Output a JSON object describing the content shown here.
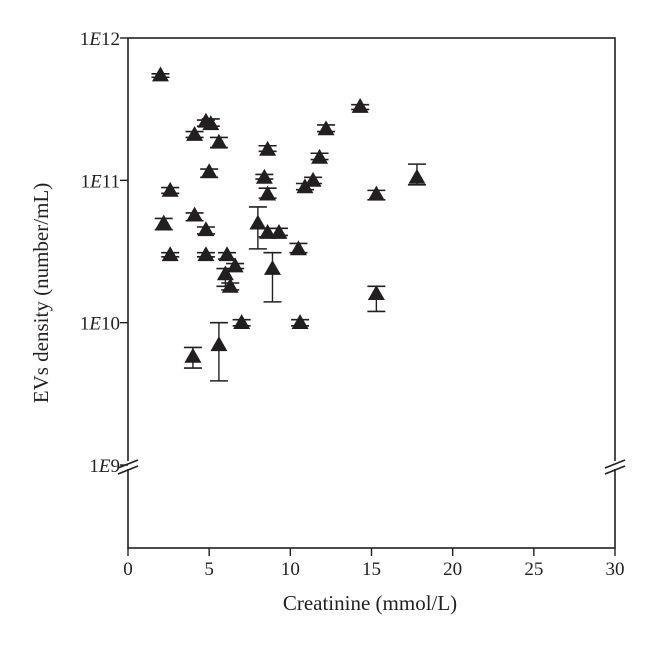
{
  "chart_data": {
    "type": "scatter",
    "title": "",
    "xlabel": "Creatinine (mmol/L)",
    "ylabel": "EVs density (number/mL)",
    "xlim": [
      0,
      30
    ],
    "ylim": [
      1000000000,
      1000000000000
    ],
    "y_scale": "log",
    "y_axis_break": true,
    "grid": false,
    "legend": "none",
    "marker": "filled-triangle",
    "error_bars": true,
    "colors": {
      "marker": "#231f20",
      "axis": "#231f20",
      "background": "#ffffff"
    },
    "x_ticks": [
      {
        "value": 0,
        "label": "0"
      },
      {
        "value": 5,
        "label": "5"
      },
      {
        "value": 10,
        "label": "10"
      },
      {
        "value": 15,
        "label": "15"
      },
      {
        "value": 20,
        "label": "20"
      },
      {
        "value": 25,
        "label": "25"
      },
      {
        "value": 30,
        "label": "30"
      }
    ],
    "y_ticks": [
      {
        "value": 1000000000,
        "label": "1E9"
      },
      {
        "value": 10000000000,
        "label": "1E10"
      },
      {
        "value": 100000000000,
        "label": "1E11"
      },
      {
        "value": 1000000000000,
        "label": "1E12"
      }
    ],
    "points": [
      {
        "x": 2.0,
        "y": 550000000000,
        "y_low": 530000000000,
        "y_high": 560000000000
      },
      {
        "x": 2.6,
        "y": 85000000000,
        "y_low": 81000000000,
        "y_high": 89000000000
      },
      {
        "x": 2.2,
        "y": 50000000000,
        "y_low": 45000000000,
        "y_high": 54000000000
      },
      {
        "x": 2.6,
        "y": 30000000000,
        "y_low": 29000000000,
        "y_high": 31000000000
      },
      {
        "x": 4.1,
        "y": 210000000000,
        "y_low": 200000000000,
        "y_high": 220000000000
      },
      {
        "x": 4.8,
        "y": 260000000000,
        "y_low": 240000000000,
        "y_high": 265000000000
      },
      {
        "x": 5.1,
        "y": 250000000000,
        "y_low": 240000000000,
        "y_high": 270000000000
      },
      {
        "x": 5.6,
        "y": 185000000000,
        "y_low": 170000000000,
        "y_high": 200000000000
      },
      {
        "x": 5.0,
        "y": 115000000000,
        "y_low": 105000000000,
        "y_high": 120000000000
      },
      {
        "x": 4.1,
        "y": 57000000000,
        "y_low": 52000000000,
        "y_high": 59000000000
      },
      {
        "x": 4.8,
        "y": 45000000000,
        "y_low": 42000000000,
        "y_high": 47000000000
      },
      {
        "x": 4.8,
        "y": 30000000000,
        "y_low": 29000000000,
        "y_high": 31000000000
      },
      {
        "x": 4.0,
        "y": 5800000000,
        "y_low": 4800000000,
        "y_high": 6700000000
      },
      {
        "x": 5.6,
        "y": 7000000000,
        "y_low": 3900000000,
        "y_high": 10000000000
      },
      {
        "x": 6.0,
        "y": 22000000000,
        "y_low": 18000000000,
        "y_high": 24000000000
      },
      {
        "x": 6.1,
        "y": 30000000000,
        "y_low": 28000000000,
        "y_high": 31000000000
      },
      {
        "x": 6.3,
        "y": 18000000000,
        "y_low": 17000000000,
        "y_high": 19000000000
      },
      {
        "x": 6.6,
        "y": 25000000000,
        "y_low": 24000000000,
        "y_high": 26000000000
      },
      {
        "x": 7.0,
        "y": 10000000000,
        "y_low": 9500000000,
        "y_high": 10500000000
      },
      {
        "x": 8.0,
        "y": 50000000000,
        "y_low": 33000000000,
        "y_high": 65000000000
      },
      {
        "x": 8.6,
        "y": 43000000000,
        "y_low": 40000000000,
        "y_high": 46000000000
      },
      {
        "x": 8.9,
        "y": 24000000000,
        "y_low": 14000000000,
        "y_high": 31000000000
      },
      {
        "x": 8.6,
        "y": 80000000000,
        "y_low": 75000000000,
        "y_high": 88000000000
      },
      {
        "x": 8.4,
        "y": 105000000000,
        "y_low": 102000000000,
        "y_high": 110000000000
      },
      {
        "x": 8.6,
        "y": 165000000000,
        "y_low": 160000000000,
        "y_high": 175000000000
      },
      {
        "x": 9.3,
        "y": 43000000000,
        "y_low": 41000000000,
        "y_high": 46000000000
      },
      {
        "x": 10.5,
        "y": 33000000000,
        "y_low": 31000000000,
        "y_high": 36000000000
      },
      {
        "x": 10.6,
        "y": 10000000000,
        "y_low": 9500000000,
        "y_high": 10500000000
      },
      {
        "x": 10.9,
        "y": 90000000000,
        "y_low": 86000000000,
        "y_high": 95000000000
      },
      {
        "x": 11.4,
        "y": 100000000000,
        "y_low": 95000000000,
        "y_high": 105000000000
      },
      {
        "x": 11.8,
        "y": 145000000000,
        "y_low": 140000000000,
        "y_high": 155000000000
      },
      {
        "x": 12.2,
        "y": 230000000000,
        "y_low": 220000000000,
        "y_high": 245000000000
      },
      {
        "x": 14.3,
        "y": 330000000000,
        "y_low": 315000000000,
        "y_high": 340000000000
      },
      {
        "x": 15.3,
        "y": 80000000000,
        "y_low": 73000000000,
        "y_high": 85000000000
      },
      {
        "x": 15.3,
        "y": 16000000000,
        "y_low": 12000000000,
        "y_high": 18000000000
      },
      {
        "x": 17.8,
        "y": 105000000000,
        "y_low": 93000000000,
        "y_high": 130000000000
      }
    ]
  }
}
